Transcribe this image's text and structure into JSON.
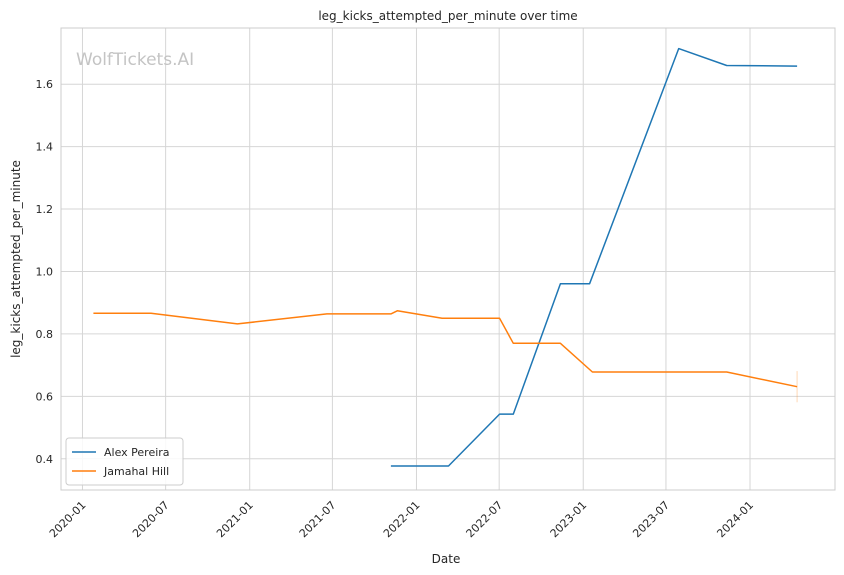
{
  "chart_data": {
    "type": "line",
    "title": "leg_kicks_attempted_per_minute over time",
    "xlabel": "Date",
    "ylabel": "leg_kicks_attempted_per_minute",
    "watermark": "WolfTickets.AI",
    "x_type": "date",
    "xlim": [
      "2019-11-15",
      "2024-07-05"
    ],
    "ylim": [
      0.3,
      1.78
    ],
    "x_ticks": [
      "2020-01",
      "2020-07",
      "2021-01",
      "2021-07",
      "2022-01",
      "2022-07",
      "2023-01",
      "2023-07",
      "2024-01"
    ],
    "y_ticks": [
      0.4,
      0.6,
      0.8,
      1.0,
      1.2,
      1.4,
      1.6
    ],
    "y_tick_labels": [
      "0.4",
      "0.6",
      "0.8",
      "1.0",
      "1.2",
      "1.4",
      "1.6"
    ],
    "grid": true,
    "legend_position": "bottom-left",
    "series": [
      {
        "name": "Alex Pereira",
        "color": "#1f77b4",
        "points": [
          [
            "2021-11-06",
            0.377
          ],
          [
            "2022-03-12",
            0.377
          ],
          [
            "2022-07-02",
            0.543
          ],
          [
            "2022-08-01",
            0.543
          ],
          [
            "2022-11-12",
            0.961
          ],
          [
            "2023-01-15",
            0.961
          ],
          [
            "2023-07-29",
            1.714
          ],
          [
            "2023-11-11",
            1.66
          ],
          [
            "2024-04-13",
            1.658
          ]
        ]
      },
      {
        "name": "Jamahal Hill",
        "color": "#ff7f0e",
        "points": [
          [
            "2020-01-25",
            0.866
          ],
          [
            "2020-05-30",
            0.866
          ],
          [
            "2020-12-05",
            0.832
          ],
          [
            "2021-06-19",
            0.864
          ],
          [
            "2021-11-06",
            0.864
          ],
          [
            "2021-11-20",
            0.874
          ],
          [
            "2022-02-26",
            0.85
          ],
          [
            "2022-07-02",
            0.85
          ],
          [
            "2022-08-01",
            0.77
          ],
          [
            "2022-11-12",
            0.77
          ],
          [
            "2023-01-21",
            0.678
          ],
          [
            "2023-11-11",
            0.678
          ],
          [
            "2024-04-13",
            0.631
          ]
        ]
      }
    ]
  }
}
